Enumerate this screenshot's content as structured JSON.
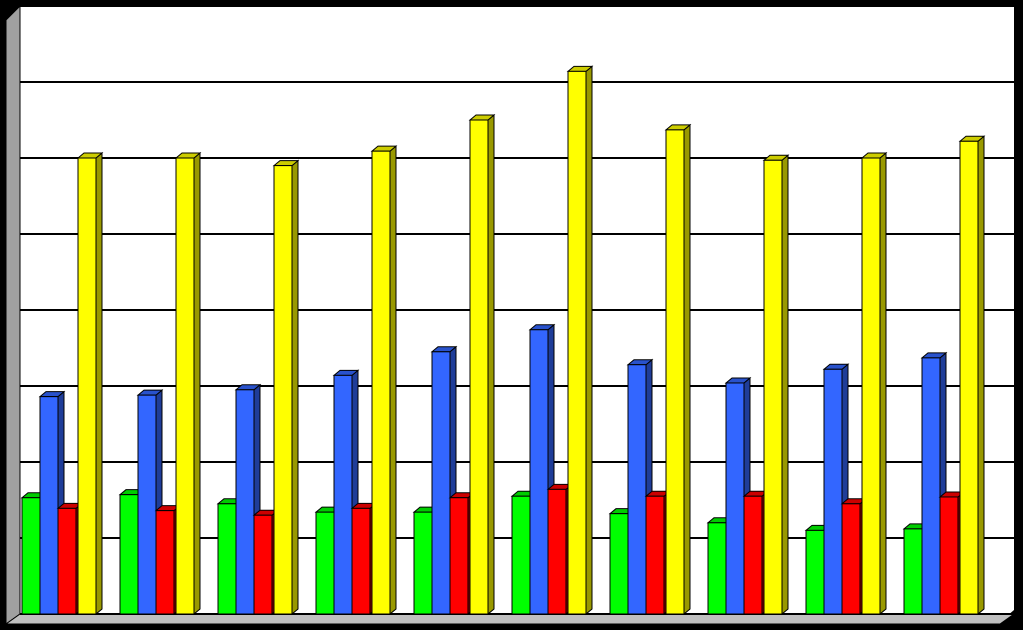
{
  "chart_data": {
    "type": "bar3d",
    "categories": [
      null,
      null,
      null,
      null,
      null,
      null,
      null,
      null,
      null,
      null
    ],
    "series": [
      {
        "color": "#00ff00",
        "values": [
          1.53,
          1.57,
          1.45,
          1.34,
          1.34,
          1.55,
          1.32,
          1.2,
          1.1,
          1.12
        ]
      },
      {
        "color": "#3366ff",
        "values": [
          2.86,
          2.88,
          2.95,
          3.14,
          3.45,
          3.74,
          3.28,
          3.04,
          3.22,
          3.37
        ]
      },
      {
        "color": "#ff0000",
        "values": [
          1.39,
          1.36,
          1.3,
          1.39,
          1.53,
          1.64,
          1.55,
          1.55,
          1.45,
          1.54
        ]
      },
      {
        "color": "#ffff00",
        "values": [
          6.0,
          6.0,
          5.9,
          6.09,
          6.5,
          7.14,
          6.37,
          5.97,
          6.0,
          6.22
        ]
      }
    ],
    "ylim": [
      0,
      8
    ],
    "yticks": [
      0,
      1,
      2,
      3,
      4,
      5,
      6,
      7,
      8
    ],
    "grid": true
  }
}
